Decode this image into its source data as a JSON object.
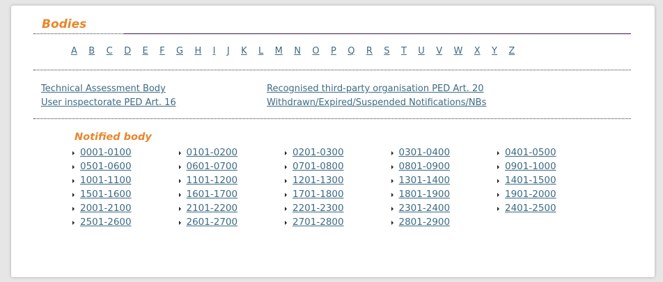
{
  "title": "Bodies",
  "letters": [
    "A",
    "B",
    "C",
    "D",
    "E",
    "F",
    "G",
    "H",
    "I",
    "J",
    "K",
    "L",
    "M",
    "N",
    "O",
    "P",
    "Q",
    "R",
    "S",
    "T",
    "U",
    "V",
    "W",
    "X",
    "Y",
    "Z"
  ],
  "links_left": [
    "Technical Assessment Body",
    "User inspectorate PED Art. 16"
  ],
  "links_right": [
    "Recognised third-party organisation PED Art. 20",
    "Withdrawn/Expired/Suspended Notifications/NBs"
  ],
  "notified_body": {
    "title": "Notified body",
    "ranges": [
      "0001-0100",
      "0101-0200",
      "0201-0300",
      "0301-0400",
      "0401-0500",
      "0501-0600",
      "0601-0700",
      "0701-0800",
      "0801-0900",
      "0901-1000",
      "1001-1100",
      "1101-1200",
      "1201-1300",
      "1301-1400",
      "1401-1500",
      "1501-1600",
      "1601-1700",
      "1701-1800",
      "1801-1900",
      "1901-2000",
      "2001-2100",
      "2101-2200",
      "2201-2300",
      "2301-2400",
      "2401-2500",
      "2501-2600",
      "2601-2700",
      "2701-2800",
      "2801-2900"
    ]
  },
  "colors": {
    "accent": "#e8862a",
    "link": "#3d6b84"
  }
}
